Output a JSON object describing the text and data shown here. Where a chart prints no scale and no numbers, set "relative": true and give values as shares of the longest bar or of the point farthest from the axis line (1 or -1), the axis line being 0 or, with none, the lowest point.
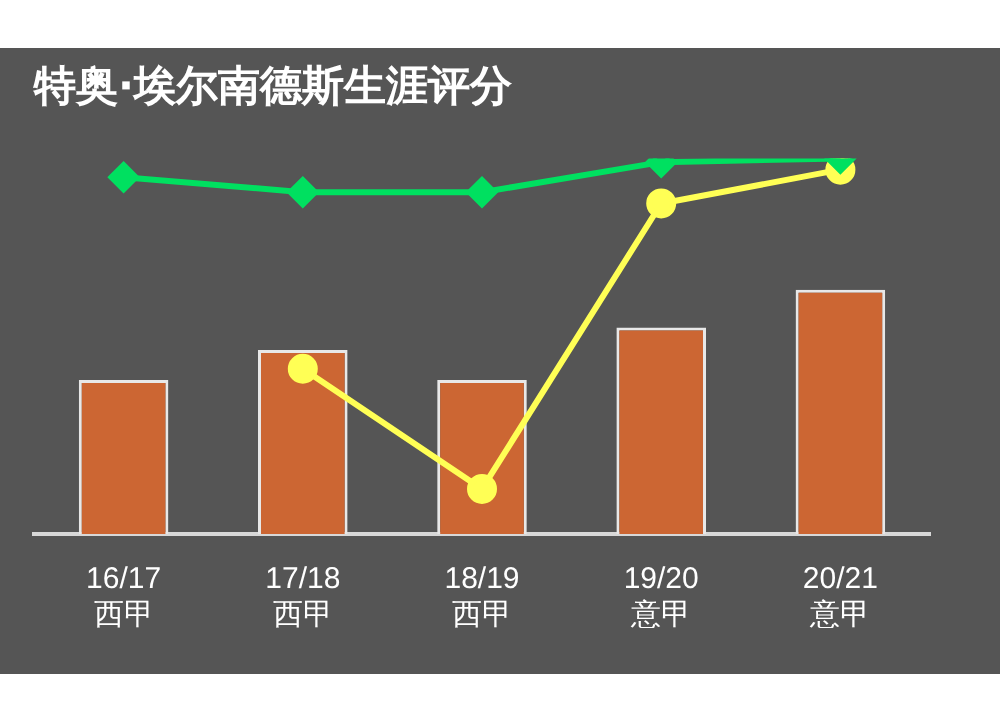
{
  "chart_data": {
    "type": "bar",
    "title": "特奥·埃尔南德斯生涯评分",
    "relative": true,
    "categories": [
      "16/17 西甲",
      "17/18 西甲",
      "18/19 西甲",
      "19/20 意甲",
      "20/21 意甲"
    ],
    "series": [
      {
        "color": "#cc6633",
        "values": [
          0.41,
          0.49,
          0.41,
          0.55,
          0.65
        ]
      },
      {
        "type": "line",
        "color": "#00e060",
        "marker": "diamond",
        "values": [
          0.95,
          0.91,
          0.91,
          0.99,
          1
        ]
      },
      {
        "type": "line",
        "color": "#ffff55",
        "marker": "circle",
        "values": [
          null,
          0.44,
          0.12,
          0.88,
          0.97
        ]
      }
    ],
    "grid": false,
    "legend": false
  }
}
